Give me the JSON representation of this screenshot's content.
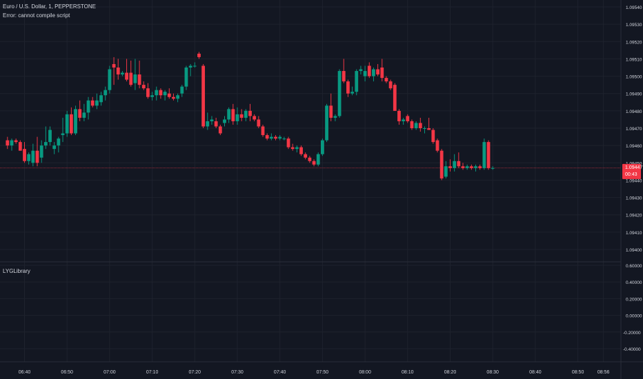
{
  "header": {
    "symbol_title": "Euro / U.S. Dollar, 1, PEPPERSTONE",
    "error_text": "Error: cannot compile script"
  },
  "indicator_pane": {
    "title": "LYGLibrary"
  },
  "price_badge": {
    "price": "1.09447",
    "countdown": "00:43"
  },
  "colors": {
    "background": "#131722",
    "grid": "#1e222d",
    "up": "#089981",
    "down": "#f23645",
    "text": "#d1d4dc",
    "price_line": "#f23645"
  },
  "chart_data": [
    {
      "type": "candlestick",
      "x_tick_labels": [
        "06:40",
        "06:50",
        "07:00",
        "07:10",
        "07:20",
        "07:30",
        "07:40",
        "07:50",
        "08:00",
        "08:10",
        "08:20",
        "08:30",
        "08:40",
        "08:50",
        "08:56"
      ],
      "y_tick_labels": [
        "1.09540",
        "1.09530",
        "1.09520",
        "1.09510",
        "1.09500",
        "1.09490",
        "1.09480",
        "1.09470",
        "1.09460",
        "1.09450",
        "1.09440",
        "1.09430",
        "1.09420",
        "1.09410",
        "1.09400"
      ],
      "ylim": [
        1.09395,
        1.09541
      ],
      "last_price": 1.09447,
      "candles": [
        {
          "t": "06:36",
          "o": 1.09463,
          "h": 1.09465,
          "l": 1.09458,
          "c": 1.0946
        },
        {
          "t": "06:37",
          "o": 1.0946,
          "h": 1.09464,
          "l": 1.09457,
          "c": 1.09463
        },
        {
          "t": "06:38",
          "o": 1.09463,
          "h": 1.09464,
          "l": 1.09461,
          "c": 1.09462
        },
        {
          "t": "06:39",
          "o": 1.09462,
          "h": 1.09463,
          "l": 1.09457,
          "c": 1.09457
        },
        {
          "t": "06:40",
          "o": 1.09458,
          "h": 1.09462,
          "l": 1.0945,
          "c": 1.09451
        },
        {
          "t": "06:41",
          "o": 1.09451,
          "h": 1.09456,
          "l": 1.09449,
          "c": 1.09455
        },
        {
          "t": "06:42",
          "o": 1.0945,
          "h": 1.09461,
          "l": 1.09448,
          "c": 1.09457
        },
        {
          "t": "06:43",
          "o": 1.09457,
          "h": 1.09465,
          "l": 1.09448,
          "c": 1.0945
        },
        {
          "t": "06:44",
          "o": 1.09453,
          "h": 1.09463,
          "l": 1.0945,
          "c": 1.0946
        },
        {
          "t": "06:45",
          "o": 1.0946,
          "h": 1.09471,
          "l": 1.09458,
          "c": 1.09462
        },
        {
          "t": "06:46",
          "o": 1.09462,
          "h": 1.09471,
          "l": 1.0946,
          "c": 1.09469
        },
        {
          "t": "06:47",
          "o": 1.09458,
          "h": 1.09462,
          "l": 1.09455,
          "c": 1.0946
        },
        {
          "t": "06:48",
          "o": 1.0946,
          "h": 1.09465,
          "l": 1.09456,
          "c": 1.09464
        },
        {
          "t": "06:49",
          "o": 1.09466,
          "h": 1.09476,
          "l": 1.09462,
          "c": 1.09467
        },
        {
          "t": "06:50",
          "o": 1.09467,
          "h": 1.0948,
          "l": 1.09465,
          "c": 1.09478
        },
        {
          "t": "06:51",
          "o": 1.09478,
          "h": 1.09482,
          "l": 1.09466,
          "c": 1.09467
        },
        {
          "t": "06:52",
          "o": 1.09467,
          "h": 1.09483,
          "l": 1.09466,
          "c": 1.09481
        },
        {
          "t": "06:53",
          "o": 1.09481,
          "h": 1.09486,
          "l": 1.09474,
          "c": 1.09476
        },
        {
          "t": "06:54",
          "o": 1.09476,
          "h": 1.09484,
          "l": 1.09474,
          "c": 1.09479
        },
        {
          "t": "06:55",
          "o": 1.09479,
          "h": 1.09488,
          "l": 1.09475,
          "c": 1.09486
        },
        {
          "t": "06:56",
          "o": 1.09486,
          "h": 1.09488,
          "l": 1.09482,
          "c": 1.09483
        },
        {
          "t": "06:57",
          "o": 1.09483,
          "h": 1.0949,
          "l": 1.09481,
          "c": 1.09486
        },
        {
          "t": "06:58",
          "o": 1.09485,
          "h": 1.09491,
          "l": 1.09483,
          "c": 1.09489
        },
        {
          "t": "06:59",
          "o": 1.09489,
          "h": 1.09494,
          "l": 1.09486,
          "c": 1.09492
        },
        {
          "t": "07:00",
          "o": 1.09492,
          "h": 1.09506,
          "l": 1.0949,
          "c": 1.09504
        },
        {
          "t": "07:01",
          "o": 1.09507,
          "h": 1.09511,
          "l": 1.09495,
          "c": 1.09505
        },
        {
          "t": "07:02",
          "o": 1.09505,
          "h": 1.0951,
          "l": 1.09498,
          "c": 1.09501
        },
        {
          "t": "07:03",
          "o": 1.09501,
          "h": 1.09503,
          "l": 1.095,
          "c": 1.09502
        },
        {
          "t": "07:04",
          "o": 1.09502,
          "h": 1.0951,
          "l": 1.09497,
          "c": 1.09498
        },
        {
          "t": "07:05",
          "o": 1.09502,
          "h": 1.09509,
          "l": 1.09494,
          "c": 1.09495
        },
        {
          "t": "07:06",
          "o": 1.09496,
          "h": 1.0951,
          "l": 1.09492,
          "c": 1.09501
        },
        {
          "t": "07:07",
          "o": 1.09501,
          "h": 1.09509,
          "l": 1.09493,
          "c": 1.09495
        },
        {
          "t": "07:08",
          "o": 1.09495,
          "h": 1.09497,
          "l": 1.09492,
          "c": 1.09493
        },
        {
          "t": "07:09",
          "o": 1.09493,
          "h": 1.09496,
          "l": 1.09487,
          "c": 1.09488
        },
        {
          "t": "07:10",
          "o": 1.09488,
          "h": 1.09491,
          "l": 1.09486,
          "c": 1.09489
        },
        {
          "t": "07:11",
          "o": 1.09489,
          "h": 1.09494,
          "l": 1.09486,
          "c": 1.09492
        },
        {
          "t": "07:12",
          "o": 1.09492,
          "h": 1.09493,
          "l": 1.09487,
          "c": 1.09489
        },
        {
          "t": "07:13",
          "o": 1.09489,
          "h": 1.09492,
          "l": 1.09486,
          "c": 1.09491
        },
        {
          "t": "07:14",
          "o": 1.0949,
          "h": 1.09493,
          "l": 1.09487,
          "c": 1.09488
        },
        {
          "t": "07:15",
          "o": 1.09488,
          "h": 1.0949,
          "l": 1.09486,
          "c": 1.09487
        },
        {
          "t": "07:16",
          "o": 1.09487,
          "h": 1.0949,
          "l": 1.09485,
          "c": 1.09489
        },
        {
          "t": "07:17",
          "o": 1.0949,
          "h": 1.09495,
          "l": 1.09488,
          "c": 1.09494
        },
        {
          "t": "07:18",
          "o": 1.09494,
          "h": 1.09506,
          "l": 1.09492,
          "c": 1.09505
        },
        {
          "t": "07:19",
          "o": 1.09505,
          "h": 1.09507,
          "l": 1.095,
          "c": 1.09506
        },
        {
          "t": "07:20",
          "o": 1.09506,
          "h": 1.09508,
          "l": 1.09505,
          "c": 1.09506
        },
        {
          "t": "07:21",
          "o": 1.09513,
          "h": 1.09514,
          "l": 1.0951,
          "c": 1.09511
        },
        {
          "t": "07:22",
          "o": 1.09506,
          "h": 1.09507,
          "l": 1.0947,
          "c": 1.09471
        },
        {
          "t": "07:23",
          "o": 1.09471,
          "h": 1.09479,
          "l": 1.09469,
          "c": 1.09474
        },
        {
          "t": "07:24",
          "o": 1.09474,
          "h": 1.09477,
          "l": 1.09472,
          "c": 1.09475
        },
        {
          "t": "07:25",
          "o": 1.09474,
          "h": 1.09476,
          "l": 1.0947,
          "c": 1.09471
        },
        {
          "t": "07:26",
          "o": 1.09471,
          "h": 1.09472,
          "l": 1.09466,
          "c": 1.09467
        },
        {
          "t": "07:27",
          "o": 1.09473,
          "h": 1.09477,
          "l": 1.09471,
          "c": 1.09475
        },
        {
          "t": "07:28",
          "o": 1.09475,
          "h": 1.09482,
          "l": 1.09473,
          "c": 1.09481
        },
        {
          "t": "07:29",
          "o": 1.09481,
          "h": 1.09484,
          "l": 1.09472,
          "c": 1.09474
        },
        {
          "t": "07:30",
          "o": 1.09474,
          "h": 1.09482,
          "l": 1.09472,
          "c": 1.09478
        },
        {
          "t": "07:31",
          "o": 1.09478,
          "h": 1.09481,
          "l": 1.09474,
          "c": 1.09476
        },
        {
          "t": "07:32",
          "o": 1.09476,
          "h": 1.09481,
          "l": 1.09474,
          "c": 1.0948
        },
        {
          "t": "07:33",
          "o": 1.0948,
          "h": 1.09484,
          "l": 1.09474,
          "c": 1.09477
        },
        {
          "t": "07:34",
          "o": 1.09477,
          "h": 1.09478,
          "l": 1.09474,
          "c": 1.09475
        },
        {
          "t": "07:35",
          "o": 1.09475,
          "h": 1.09477,
          "l": 1.0947,
          "c": 1.09471
        },
        {
          "t": "07:36",
          "o": 1.09471,
          "h": 1.09472,
          "l": 1.09465,
          "c": 1.09466
        },
        {
          "t": "07:37",
          "o": 1.09466,
          "h": 1.09467,
          "l": 1.09463,
          "c": 1.09464
        },
        {
          "t": "07:38",
          "o": 1.09464,
          "h": 1.09467,
          "l": 1.09463,
          "c": 1.09465
        },
        {
          "t": "07:39",
          "o": 1.09465,
          "h": 1.09466,
          "l": 1.09463,
          "c": 1.09464
        },
        {
          "t": "07:40",
          "o": 1.09464,
          "h": 1.09466,
          "l": 1.09463,
          "c": 1.09465
        },
        {
          "t": "07:41",
          "o": 1.09464,
          "h": 1.09465,
          "l": 1.09463,
          "c": 1.09464
        },
        {
          "t": "07:42",
          "o": 1.09464,
          "h": 1.09465,
          "l": 1.09458,
          "c": 1.09459
        },
        {
          "t": "07:43",
          "o": 1.09459,
          "h": 1.09461,
          "l": 1.09457,
          "c": 1.09458
        },
        {
          "t": "07:44",
          "o": 1.09458,
          "h": 1.0946,
          "l": 1.09456,
          "c": 1.09459
        },
        {
          "t": "07:45",
          "o": 1.09459,
          "h": 1.0946,
          "l": 1.09454,
          "c": 1.09455
        },
        {
          "t": "07:46",
          "o": 1.09455,
          "h": 1.09456,
          "l": 1.09452,
          "c": 1.09453
        },
        {
          "t": "07:47",
          "o": 1.09453,
          "h": 1.09454,
          "l": 1.0945,
          "c": 1.09451
        },
        {
          "t": "07:48",
          "o": 1.09451,
          "h": 1.09452,
          "l": 1.09448,
          "c": 1.09449
        },
        {
          "t": "07:49",
          "o": 1.09449,
          "h": 1.09456,
          "l": 1.09448,
          "c": 1.09455
        },
        {
          "t": "07:50",
          "o": 1.09455,
          "h": 1.09464,
          "l": 1.09454,
          "c": 1.09463
        },
        {
          "t": "07:51",
          "o": 1.09463,
          "h": 1.09484,
          "l": 1.09462,
          "c": 1.09483
        },
        {
          "t": "07:52",
          "o": 1.09483,
          "h": 1.0949,
          "l": 1.09474,
          "c": 1.09476
        },
        {
          "t": "07:53",
          "o": 1.09476,
          "h": 1.09478,
          "l": 1.09474,
          "c": 1.09477
        },
        {
          "t": "07:54",
          "o": 1.09477,
          "h": 1.09504,
          "l": 1.09476,
          "c": 1.09503
        },
        {
          "t": "07:55",
          "o": 1.09503,
          "h": 1.0951,
          "l": 1.09496,
          "c": 1.09497
        },
        {
          "t": "07:56",
          "o": 1.09497,
          "h": 1.09498,
          "l": 1.09488,
          "c": 1.0949
        },
        {
          "t": "07:57",
          "o": 1.0949,
          "h": 1.09494,
          "l": 1.09489,
          "c": 1.09491
        },
        {
          "t": "07:58",
          "o": 1.09491,
          "h": 1.09504,
          "l": 1.09489,
          "c": 1.09503
        },
        {
          "t": "07:59",
          "o": 1.09503,
          "h": 1.09506,
          "l": 1.09501,
          "c": 1.09504
        },
        {
          "t": "08:00",
          "o": 1.095,
          "h": 1.09506,
          "l": 1.09497,
          "c": 1.09503
        },
        {
          "t": "08:01",
          "o": 1.09506,
          "h": 1.09508,
          "l": 1.09499,
          "c": 1.095
        },
        {
          "t": "08:02",
          "o": 1.095,
          "h": 1.09505,
          "l": 1.09497,
          "c": 1.09504
        },
        {
          "t": "08:03",
          "o": 1.09504,
          "h": 1.09507,
          "l": 1.095,
          "c": 1.09501
        },
        {
          "t": "08:04",
          "o": 1.09505,
          "h": 1.0951,
          "l": 1.09497,
          "c": 1.09499
        },
        {
          "t": "08:05",
          "o": 1.09499,
          "h": 1.095,
          "l": 1.09496,
          "c": 1.09497
        },
        {
          "t": "08:06",
          "o": 1.09497,
          "h": 1.09498,
          "l": 1.09492,
          "c": 1.09493
        },
        {
          "t": "08:07",
          "o": 1.09495,
          "h": 1.09496,
          "l": 1.0948,
          "c": 1.0948
        },
        {
          "t": "08:08",
          "o": 1.0948,
          "h": 1.09481,
          "l": 1.09472,
          "c": 1.09474
        },
        {
          "t": "08:09",
          "o": 1.09474,
          "h": 1.09476,
          "l": 1.09472,
          "c": 1.09475
        },
        {
          "t": "08:10",
          "o": 1.09477,
          "h": 1.09478,
          "l": 1.09473,
          "c": 1.09474
        },
        {
          "t": "08:11",
          "o": 1.09474,
          "h": 1.09475,
          "l": 1.09469,
          "c": 1.0947
        },
        {
          "t": "08:12",
          "o": 1.0947,
          "h": 1.09474,
          "l": 1.09469,
          "c": 1.09473
        },
        {
          "t": "08:13",
          "o": 1.09473,
          "h": 1.09476,
          "l": 1.09468,
          "c": 1.0947
        },
        {
          "t": "08:14",
          "o": 1.0947,
          "h": 1.09471,
          "l": 1.09467,
          "c": 1.0947
        },
        {
          "t": "08:15",
          "o": 1.0947,
          "h": 1.09476,
          "l": 1.09469,
          "c": 1.09469
        },
        {
          "t": "08:16",
          "o": 1.09469,
          "h": 1.0947,
          "l": 1.09461,
          "c": 1.09462
        },
        {
          "t": "08:17",
          "o": 1.09463,
          "h": 1.09464,
          "l": 1.09456,
          "c": 1.09457
        },
        {
          "t": "08:18",
          "o": 1.09457,
          "h": 1.09458,
          "l": 1.0944,
          "c": 1.09441
        },
        {
          "t": "08:19",
          "o": 1.09442,
          "h": 1.09451,
          "l": 1.09441,
          "c": 1.09448
        },
        {
          "t": "08:20",
          "o": 1.09448,
          "h": 1.09452,
          "l": 1.09445,
          "c": 1.09447
        },
        {
          "t": "08:21",
          "o": 1.09447,
          "h": 1.09455,
          "l": 1.09445,
          "c": 1.09451
        },
        {
          "t": "08:22",
          "o": 1.09451,
          "h": 1.09456,
          "l": 1.09447,
          "c": 1.09448
        },
        {
          "t": "08:23",
          "o": 1.09448,
          "h": 1.0945,
          "l": 1.09446,
          "c": 1.09447
        },
        {
          "t": "08:24",
          "o": 1.09447,
          "h": 1.09449,
          "l": 1.09446,
          "c": 1.09448
        },
        {
          "t": "08:25",
          "o": 1.09448,
          "h": 1.09449,
          "l": 1.09446,
          "c": 1.09447
        },
        {
          "t": "08:26",
          "o": 1.09447,
          "h": 1.09449,
          "l": 1.09445,
          "c": 1.09448
        },
        {
          "t": "08:27",
          "o": 1.09448,
          "h": 1.09449,
          "l": 1.09446,
          "c": 1.09447
        },
        {
          "t": "08:28",
          "o": 1.09447,
          "h": 1.09464,
          "l": 1.09446,
          "c": 1.09462
        },
        {
          "t": "08:29",
          "o": 1.09462,
          "h": 1.09463,
          "l": 1.09446,
          "c": 1.09447
        },
        {
          "t": "08:30",
          "o": 1.09447,
          "h": 1.09448,
          "l": 1.09446,
          "c": 1.09447
        }
      ]
    },
    {
      "type": "line",
      "series": [],
      "ylim": [
        -0.5,
        0.6
      ],
      "y_tick_labels": [
        "0.60000",
        "0.40000",
        "0.20000",
        "0.00000",
        "-0.20000",
        "-0.40000"
      ]
    }
  ]
}
